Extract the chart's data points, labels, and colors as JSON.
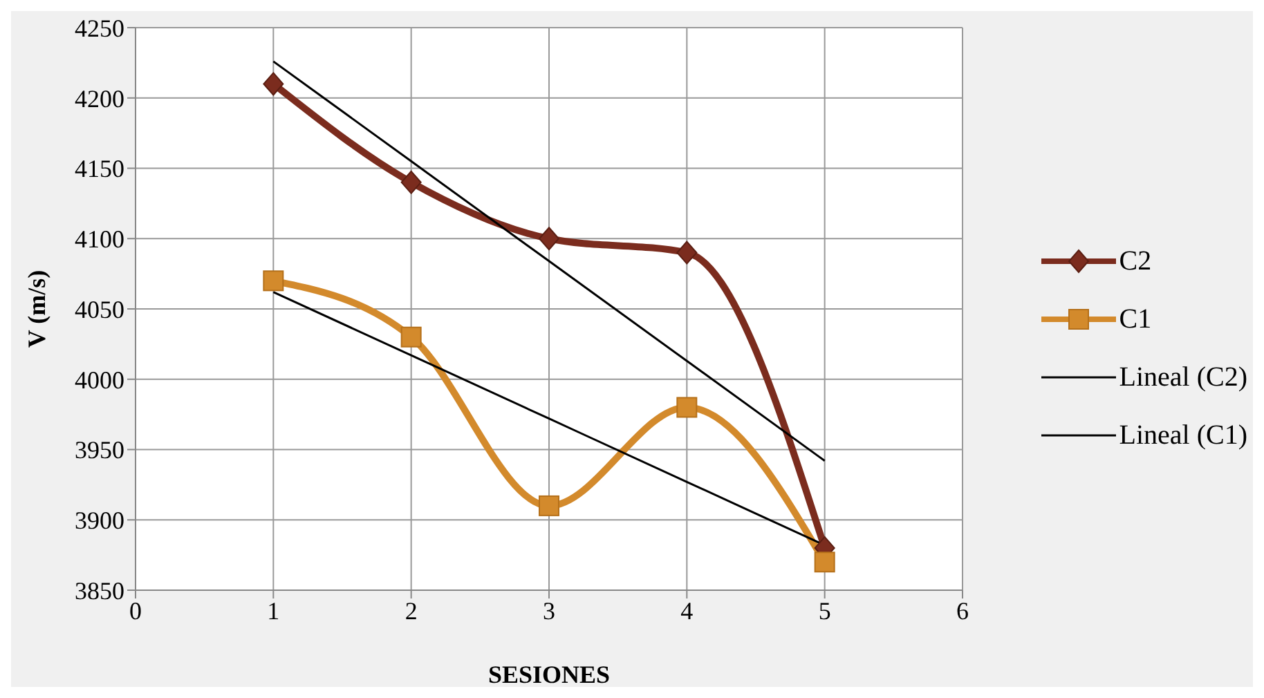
{
  "chart_data": {
    "type": "line",
    "xlabel": "SESIONES",
    "ylabel": "V (m/s)",
    "x": [
      1,
      2,
      3,
      4,
      5
    ],
    "series": [
      {
        "name": "C2",
        "color": "#7b2c1e",
        "values": [
          4210,
          4140,
          4100,
          4090,
          3880
        ],
        "marker": "diamond"
      },
      {
        "name": "C1",
        "color": "#d38a2c",
        "values": [
          4070,
          4030,
          3910,
          3980,
          3870
        ],
        "marker": "square"
      },
      {
        "name": "Lineal (C2)",
        "color": "#000000",
        "values": [
          4226,
          4155,
          4084,
          4013,
          3942
        ],
        "marker": "none"
      },
      {
        "name": "Lineal (C1)",
        "color": "#000000",
        "values": [
          4062,
          4017,
          3972,
          3927,
          3882
        ],
        "marker": "none"
      }
    ],
    "xlim": [
      0,
      6
    ],
    "xticks": [
      0,
      1,
      2,
      3,
      4,
      5,
      6
    ],
    "ylim": [
      3850,
      4250
    ],
    "yticks": [
      3850,
      3900,
      3950,
      4000,
      4050,
      4100,
      4150,
      4200,
      4250
    ],
    "grid": true,
    "legend": "right"
  }
}
